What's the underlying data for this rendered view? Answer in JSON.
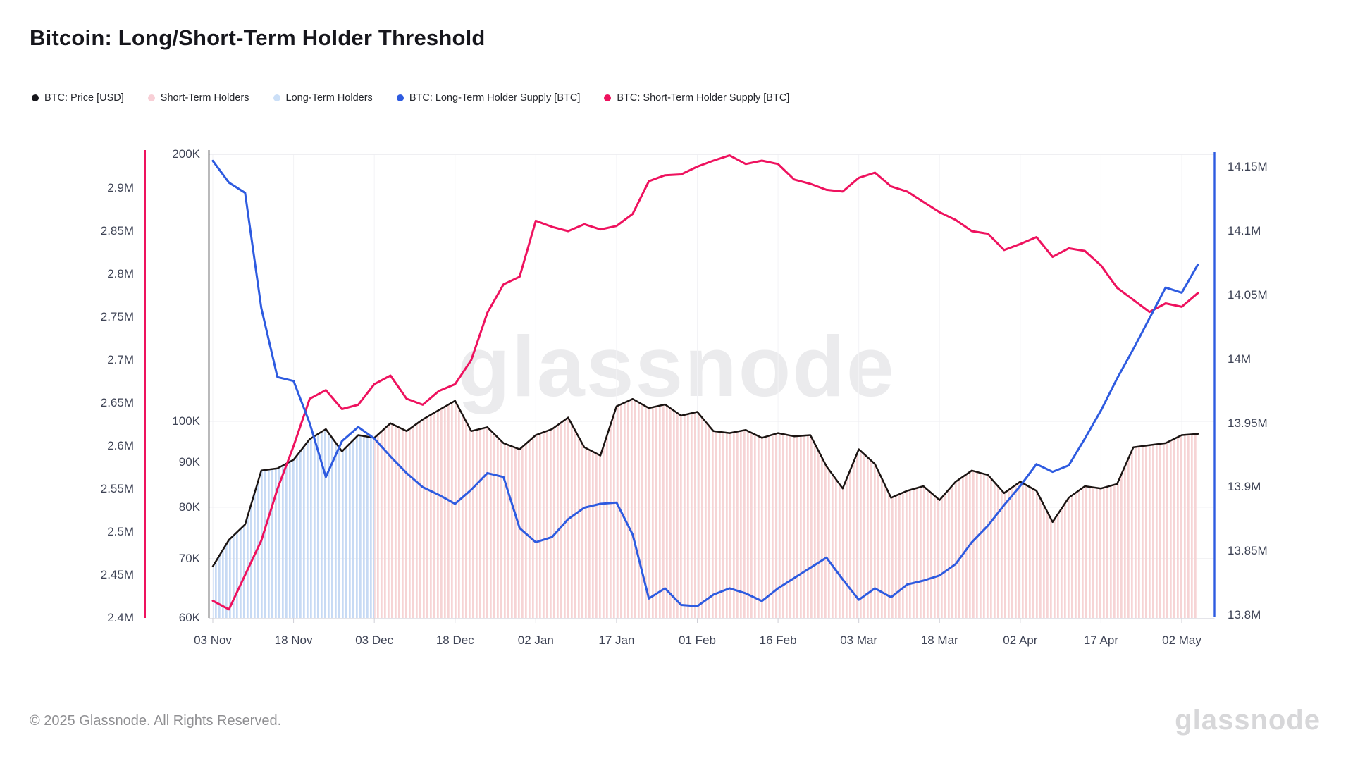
{
  "title": "Bitcoin: Long/Short-Term Holder Threshold",
  "legend": {
    "items": [
      {
        "label": "BTC: Price [USD]",
        "color": "#17171c"
      },
      {
        "label": "Short-Term Holders",
        "color": "#f8cfd6"
      },
      {
        "label": "Long-Term Holders",
        "color": "#cbdff7"
      },
      {
        "label": "BTC: Long-Term Holder Supply [BTC]",
        "color": "#2e5be0"
      },
      {
        "label": "BTC: Short-Term Holder Supply [BTC]",
        "color": "#ee125e"
      }
    ]
  },
  "watermark": "glassnode",
  "footer": {
    "copyright": "© 2025 Glassnode. All Rights Reserved.",
    "logo": "glassnode"
  },
  "chart_data": {
    "type": "line",
    "title": "Bitcoin: Long/Short-Term Holder Threshold",
    "start_date": "03 Nov",
    "end_date": "05 May",
    "sample_interval_days": 3,
    "x_axis": {
      "tick_labels": [
        "03 Nov",
        "18 Nov",
        "03 Dec",
        "18 Dec",
        "02 Jan",
        "17 Jan",
        "01 Feb",
        "16 Feb",
        "03 Mar",
        "18 Mar",
        "02 Apr",
        "17 Apr",
        "02 May"
      ],
      "tick_day_offsets": [
        0,
        15,
        30,
        45,
        60,
        75,
        90,
        105,
        120,
        135,
        150,
        165,
        180
      ]
    },
    "y_axis_sth_supply": {
      "side": "far-left",
      "color": "#ee125e",
      "unit": "BTC",
      "tick_labels": [
        "2.9M",
        "2.85M",
        "2.8M",
        "2.75M",
        "2.7M",
        "2.65M",
        "2.6M",
        "2.55M",
        "2.5M",
        "2.45M",
        "2.4M"
      ],
      "tick_values": [
        2.9,
        2.85,
        2.8,
        2.75,
        2.7,
        2.65,
        2.6,
        2.55,
        2.5,
        2.45,
        2.4
      ],
      "range": [
        2.4,
        2.96
      ]
    },
    "y_axis_price": {
      "side": "inner-left",
      "color": "#17171c",
      "unit": "USD",
      "scale": "log",
      "tick_labels": [
        "200K",
        "100K",
        "90K",
        "80K",
        "70K",
        "60K"
      ],
      "tick_values": [
        200,
        100,
        90,
        80,
        70,
        60
      ],
      "range": [
        60,
        210
      ]
    },
    "y_axis_lth_supply": {
      "side": "right",
      "color": "#2e5be0",
      "unit": "BTC",
      "tick_labels": [
        "14.15M",
        "14.1M",
        "14.05M",
        "14M",
        "13.95M",
        "13.9M",
        "13.85M",
        "13.8M"
      ],
      "tick_values": [
        14.15,
        14.1,
        14.05,
        14.0,
        13.95,
        13.9,
        13.85,
        13.8
      ],
      "range": [
        13.8,
        14.18
      ]
    },
    "bands": [
      {
        "name": "Long-Term Holders",
        "from_day": 0,
        "to_day": 30,
        "color": "#c7daf4"
      },
      {
        "name": "Short-Term Holders",
        "from_day": 30,
        "to_day": 183,
        "color": "#f6d4d5"
      }
    ],
    "series": [
      {
        "name": "BTC: Price [USD]",
        "axis": "price",
        "color": "#1b1412",
        "unit": "thousand USD",
        "values": [
          68.6,
          73.5,
          76.5,
          88,
          88.5,
          90.5,
          95.5,
          98,
          92.5,
          96.5,
          95.8,
          99.5,
          97.5,
          100.5,
          103,
          105.5,
          97.5,
          98.5,
          94.5,
          93,
          96.5,
          98,
          101,
          93.5,
          91.5,
          104,
          106,
          103.5,
          104.5,
          101.5,
          102.5,
          97.5,
          97,
          97.8,
          95.8,
          97,
          96.2,
          96.5,
          89,
          84,
          93,
          89.5,
          82,
          83.5,
          84.5,
          81.5,
          85.5,
          88,
          87,
          83,
          85.5,
          83.5,
          77,
          82,
          84.5,
          84,
          85,
          93.5,
          94,
          94.5,
          96.5,
          96.8
        ]
      },
      {
        "name": "BTC: Short-Term Holder Supply [BTC]",
        "axis": "sth",
        "color": "#ee125e",
        "unit": "million BTC",
        "values": [
          2.42,
          2.41,
          2.45,
          2.49,
          2.55,
          2.6,
          2.655,
          2.665,
          2.643,
          2.648,
          2.672,
          2.682,
          2.655,
          2.648,
          2.664,
          2.672,
          2.7,
          2.755,
          2.788,
          2.797,
          2.862,
          2.855,
          2.85,
          2.858,
          2.852,
          2.856,
          2.87,
          2.908,
          2.915,
          2.916,
          2.925,
          2.932,
          2.938,
          2.928,
          2.932,
          2.928,
          2.91,
          2.905,
          2.898,
          2.896,
          2.912,
          2.918,
          2.902,
          2.896,
          2.884,
          2.872,
          2.863,
          2.85,
          2.847,
          2.828,
          2.835,
          2.843,
          2.82,
          2.83,
          2.827,
          2.81,
          2.784,
          2.77,
          2.756,
          2.766,
          2.762,
          2.778
        ]
      },
      {
        "name": "BTC: Long-Term Holder Supply [BTC]",
        "axis": "lth",
        "color": "#2e5be0",
        "unit": "million BTC",
        "values": [
          14.155,
          14.138,
          14.13,
          14.04,
          13.986,
          13.983,
          13.95,
          13.908,
          13.936,
          13.947,
          13.938,
          13.924,
          13.911,
          13.9,
          13.894,
          13.887,
          13.898,
          13.911,
          13.908,
          13.868,
          13.857,
          13.861,
          13.875,
          13.884,
          13.887,
          13.888,
          13.863,
          13.813,
          13.821,
          13.808,
          13.807,
          13.816,
          13.821,
          13.817,
          13.811,
          13.821,
          13.829,
          13.837,
          13.845,
          13.828,
          13.812,
          13.821,
          13.814,
          13.824,
          13.827,
          13.831,
          13.84,
          13.857,
          13.87,
          13.886,
          13.901,
          13.918,
          13.912,
          13.917,
          13.938,
          13.96,
          13.985,
          14.008,
          14.032,
          14.056,
          14.052,
          14.074
        ]
      }
    ],
    "grid": {
      "horizontal": true,
      "vertical": true
    },
    "legend_position": "top-left"
  }
}
